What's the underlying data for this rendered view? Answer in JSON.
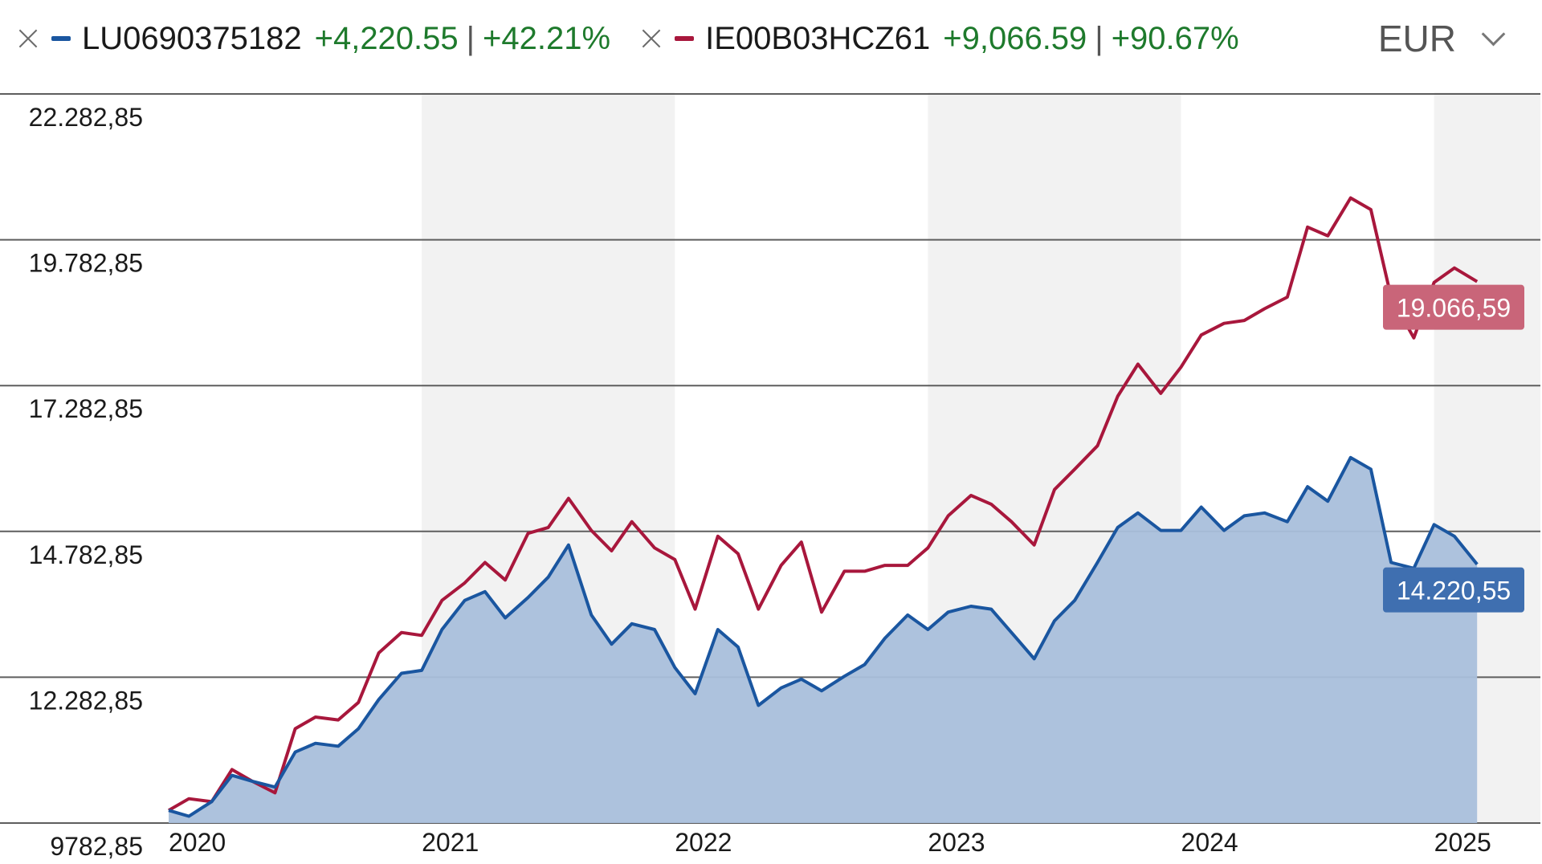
{
  "legend": {
    "series": [
      {
        "isin": "LU0690375182",
        "change_abs": "+4,220.55",
        "change_pct": "+42.21%",
        "color": "#1a56a0"
      },
      {
        "isin": "IE00B03HCZ61",
        "change_abs": "+9,066.59",
        "change_pct": "+90.67%",
        "color": "#a8173c"
      }
    ],
    "separator": "|",
    "currency": "EUR"
  },
  "chart_data": {
    "type": "line",
    "y_ticks": [
      "22.282,85",
      "19.782,85",
      "17.282,85",
      "14.782,85",
      "12.282,85",
      "9782,85"
    ],
    "x_ticks": [
      "2020",
      "2021",
      "2022",
      "2023",
      "2024",
      "2025"
    ],
    "ylim": [
      9782.85,
      22282.85
    ],
    "xlim": [
      2020.0,
      2025.42
    ],
    "grid": true,
    "legend_position": "top-left",
    "series": [
      {
        "name": "LU0690375182",
        "color": "#1a56a0",
        "fill": "#a9bfdb",
        "end_label": "14.220,55",
        "end_label_color": "#3f6fb0",
        "points": [
          [
            2020.0,
            10000
          ],
          [
            2020.08,
            9900
          ],
          [
            2020.17,
            10150
          ],
          [
            2020.25,
            10600
          ],
          [
            2020.33,
            10500
          ],
          [
            2020.42,
            10400
          ],
          [
            2020.5,
            11000
          ],
          [
            2020.58,
            11150
          ],
          [
            2020.67,
            11100
          ],
          [
            2020.75,
            11400
          ],
          [
            2020.83,
            11900
          ],
          [
            2020.92,
            12350
          ],
          [
            2021.0,
            12400
          ],
          [
            2021.08,
            13100
          ],
          [
            2021.17,
            13600
          ],
          [
            2021.25,
            13750
          ],
          [
            2021.33,
            13300
          ],
          [
            2021.42,
            13650
          ],
          [
            2021.5,
            14000
          ],
          [
            2021.58,
            14550
          ],
          [
            2021.67,
            13350
          ],
          [
            2021.75,
            12850
          ],
          [
            2021.83,
            13200
          ],
          [
            2021.92,
            13100
          ],
          [
            2022.0,
            12450
          ],
          [
            2022.08,
            12000
          ],
          [
            2022.17,
            13100
          ],
          [
            2022.25,
            12800
          ],
          [
            2022.33,
            11800
          ],
          [
            2022.42,
            12100
          ],
          [
            2022.5,
            12250
          ],
          [
            2022.58,
            12050
          ],
          [
            2022.67,
            12300
          ],
          [
            2022.75,
            12500
          ],
          [
            2022.83,
            12950
          ],
          [
            2022.92,
            13350
          ],
          [
            2023.0,
            13100
          ],
          [
            2023.08,
            13400
          ],
          [
            2023.17,
            13500
          ],
          [
            2023.25,
            13450
          ],
          [
            2023.33,
            13050
          ],
          [
            2023.42,
            12600
          ],
          [
            2023.5,
            13250
          ],
          [
            2023.58,
            13600
          ],
          [
            2023.67,
            14250
          ],
          [
            2023.75,
            14850
          ],
          [
            2023.83,
            15100
          ],
          [
            2023.92,
            14800
          ],
          [
            2024.0,
            14800
          ],
          [
            2024.08,
            15200
          ],
          [
            2024.17,
            14800
          ],
          [
            2024.25,
            15050
          ],
          [
            2024.33,
            15100
          ],
          [
            2024.42,
            14950
          ],
          [
            2024.5,
            15550
          ],
          [
            2024.58,
            15300
          ],
          [
            2024.67,
            16050
          ],
          [
            2024.75,
            15850
          ],
          [
            2024.83,
            14250
          ],
          [
            2024.92,
            14150
          ],
          [
            2025.0,
            14900
          ],
          [
            2025.08,
            14700
          ],
          [
            2025.17,
            14220
          ]
        ]
      },
      {
        "name": "IE00B03HCZ61",
        "color": "#a8173c",
        "end_label": "19.066,59",
        "end_label_color": "#c96579",
        "points": [
          [
            2020.0,
            10000
          ],
          [
            2020.08,
            10200
          ],
          [
            2020.17,
            10150
          ],
          [
            2020.25,
            10700
          ],
          [
            2020.33,
            10500
          ],
          [
            2020.42,
            10300
          ],
          [
            2020.5,
            11400
          ],
          [
            2020.58,
            11600
          ],
          [
            2020.67,
            11550
          ],
          [
            2020.75,
            11850
          ],
          [
            2020.83,
            12700
          ],
          [
            2020.92,
            13050
          ],
          [
            2021.0,
            13000
          ],
          [
            2021.08,
            13600
          ],
          [
            2021.17,
            13900
          ],
          [
            2021.25,
            14250
          ],
          [
            2021.33,
            13950
          ],
          [
            2021.42,
            14750
          ],
          [
            2021.5,
            14850
          ],
          [
            2021.58,
            15350
          ],
          [
            2021.67,
            14800
          ],
          [
            2021.75,
            14450
          ],
          [
            2021.83,
            14950
          ],
          [
            2021.92,
            14500
          ],
          [
            2022.0,
            14300
          ],
          [
            2022.08,
            13450
          ],
          [
            2022.17,
            14700
          ],
          [
            2022.25,
            14400
          ],
          [
            2022.33,
            13450
          ],
          [
            2022.42,
            14200
          ],
          [
            2022.5,
            14600
          ],
          [
            2022.58,
            13400
          ],
          [
            2022.67,
            14100
          ],
          [
            2022.75,
            14100
          ],
          [
            2022.83,
            14200
          ],
          [
            2022.92,
            14200
          ],
          [
            2023.0,
            14500
          ],
          [
            2023.08,
            15050
          ],
          [
            2023.17,
            15400
          ],
          [
            2023.25,
            15250
          ],
          [
            2023.33,
            14950
          ],
          [
            2023.42,
            14550
          ],
          [
            2023.5,
            15500
          ],
          [
            2023.58,
            15850
          ],
          [
            2023.67,
            16250
          ],
          [
            2023.75,
            17100
          ],
          [
            2023.83,
            17650
          ],
          [
            2023.92,
            17150
          ],
          [
            2024.0,
            17600
          ],
          [
            2024.08,
            18150
          ],
          [
            2024.17,
            18350
          ],
          [
            2024.25,
            18400
          ],
          [
            2024.33,
            18600
          ],
          [
            2024.42,
            18800
          ],
          [
            2024.5,
            20000
          ],
          [
            2024.58,
            19850
          ],
          [
            2024.67,
            20500
          ],
          [
            2024.75,
            20300
          ],
          [
            2024.83,
            18800
          ],
          [
            2024.92,
            18100
          ],
          [
            2025.0,
            19050
          ],
          [
            2025.08,
            19300
          ],
          [
            2025.17,
            19066
          ]
        ]
      }
    ]
  }
}
